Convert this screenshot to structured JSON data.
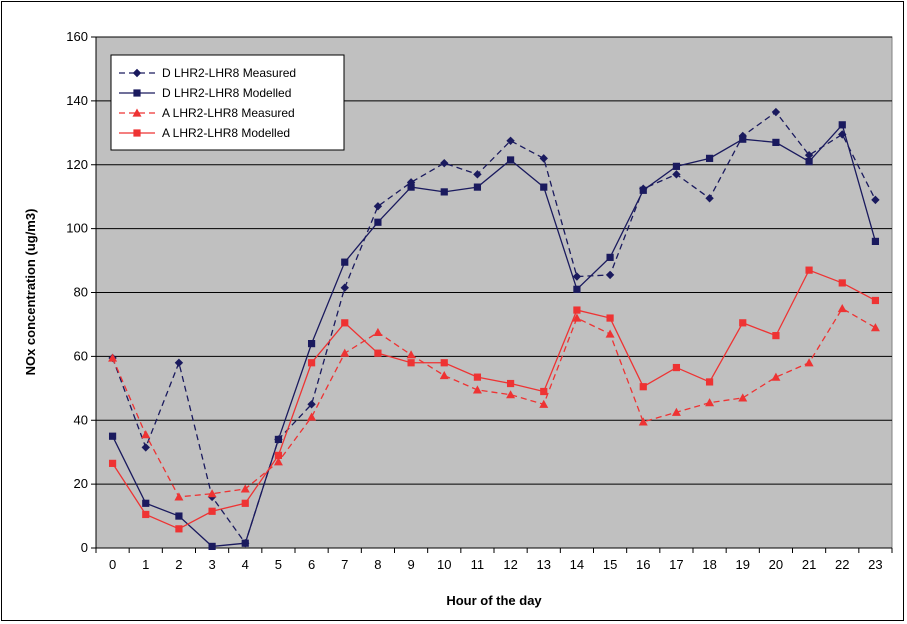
{
  "chart_data": {
    "type": "line",
    "xlabel": "Hour of the day",
    "ylabel": "NOx concentration (ug/m3)",
    "x": [
      0,
      1,
      2,
      3,
      4,
      5,
      6,
      7,
      8,
      9,
      10,
      11,
      12,
      13,
      14,
      15,
      16,
      17,
      18,
      19,
      20,
      21,
      22,
      23
    ],
    "ylim": [
      0,
      160
    ],
    "yticks": [
      0,
      20,
      40,
      60,
      80,
      100,
      120,
      140,
      160
    ],
    "grid": true,
    "legend_position": "top-left",
    "colors": {
      "plot_bg": "#c0c0c0",
      "navy": "#1a1a5e",
      "red": "#ee3333"
    },
    "series": [
      {
        "name": "D LHR2-LHR8 Measured",
        "color": "#1a1a5e",
        "dash": true,
        "marker": "diamond",
        "values": [
          59.5,
          31.5,
          58.0,
          16.0,
          1.5,
          34.0,
          45.0,
          81.5,
          107.0,
          114.5,
          120.5,
          117.0,
          127.5,
          122.0,
          85.0,
          85.5,
          112.5,
          117.0,
          109.5,
          129.0,
          136.5,
          123.0,
          129.5,
          109.0
        ]
      },
      {
        "name": "D LHR2-LHR8 Modelled",
        "color": "#1a1a5e",
        "dash": false,
        "marker": "square",
        "values": [
          35.0,
          14.0,
          10.0,
          0.5,
          1.5,
          34.0,
          64.0,
          89.5,
          102.0,
          113.0,
          111.5,
          113.0,
          121.5,
          113.0,
          81.0,
          91.0,
          112.0,
          119.5,
          122.0,
          128.0,
          127.0,
          121.0,
          132.5,
          96.0
        ]
      },
      {
        "name": "A LHR2-LHR8 Measured",
        "color": "#ee3333",
        "dash": true,
        "marker": "triangle",
        "values": [
          59.5,
          35.5,
          16.0,
          17.0,
          18.5,
          27.0,
          41.0,
          61.0,
          67.5,
          60.5,
          54.0,
          49.5,
          48.0,
          45.0,
          72.0,
          67.0,
          39.5,
          42.5,
          45.5,
          47.0,
          53.5,
          58.0,
          75.0,
          69.0
        ]
      },
      {
        "name": "A LHR2-LHR8 Modelled",
        "color": "#ee3333",
        "dash": false,
        "marker": "square",
        "values": [
          26.5,
          10.5,
          6.0,
          11.5,
          14.0,
          29.0,
          58.0,
          70.5,
          61.0,
          58.0,
          58.0,
          53.5,
          51.5,
          49.0,
          74.5,
          72.0,
          50.5,
          56.5,
          52.0,
          70.5,
          66.5,
          87.0,
          83.0,
          77.5
        ]
      }
    ]
  }
}
